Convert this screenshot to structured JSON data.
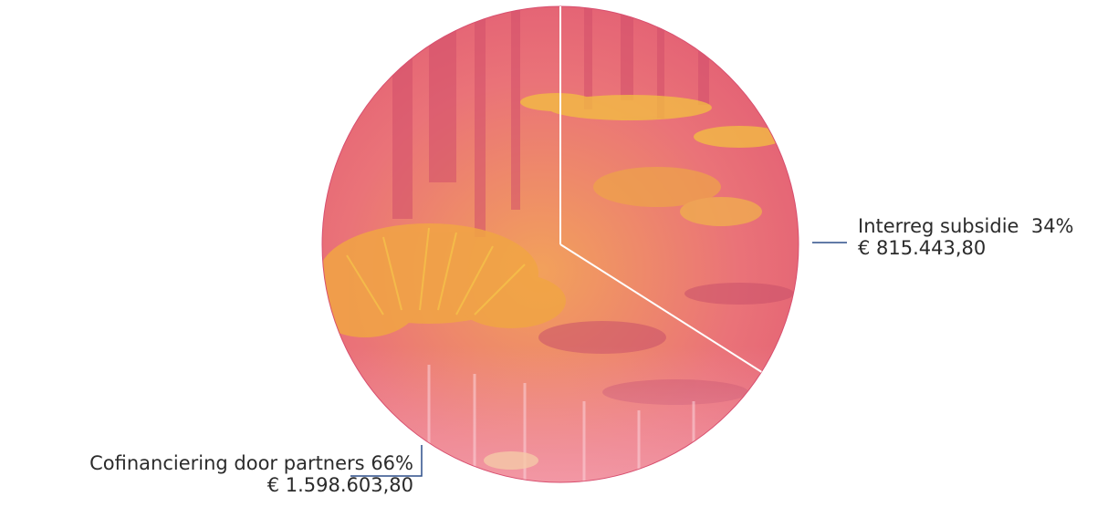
{
  "chart_data": {
    "type": "pie",
    "title": "",
    "slices": [
      {
        "name": "Interreg subsidie",
        "percent_label": "34%",
        "value": 815443.8,
        "value_label": "€ 815.443,80",
        "percent": 34
      },
      {
        "name": "Cofinanciering door partners",
        "percent_label": "66%",
        "value": 1598603.8,
        "value_label": "€ 1.598.603,80",
        "percent": 66
      }
    ],
    "fill_style": "photo texture (reeds and water) tinted pink-orange",
    "colors": {
      "tint_base": "#e8607a",
      "tint_highlight": "#f6b24a",
      "tint_water": "#f4a0b0",
      "separator": "#ffffff",
      "leader": "#2d4f8a",
      "outline": "#d84f6f"
    }
  }
}
